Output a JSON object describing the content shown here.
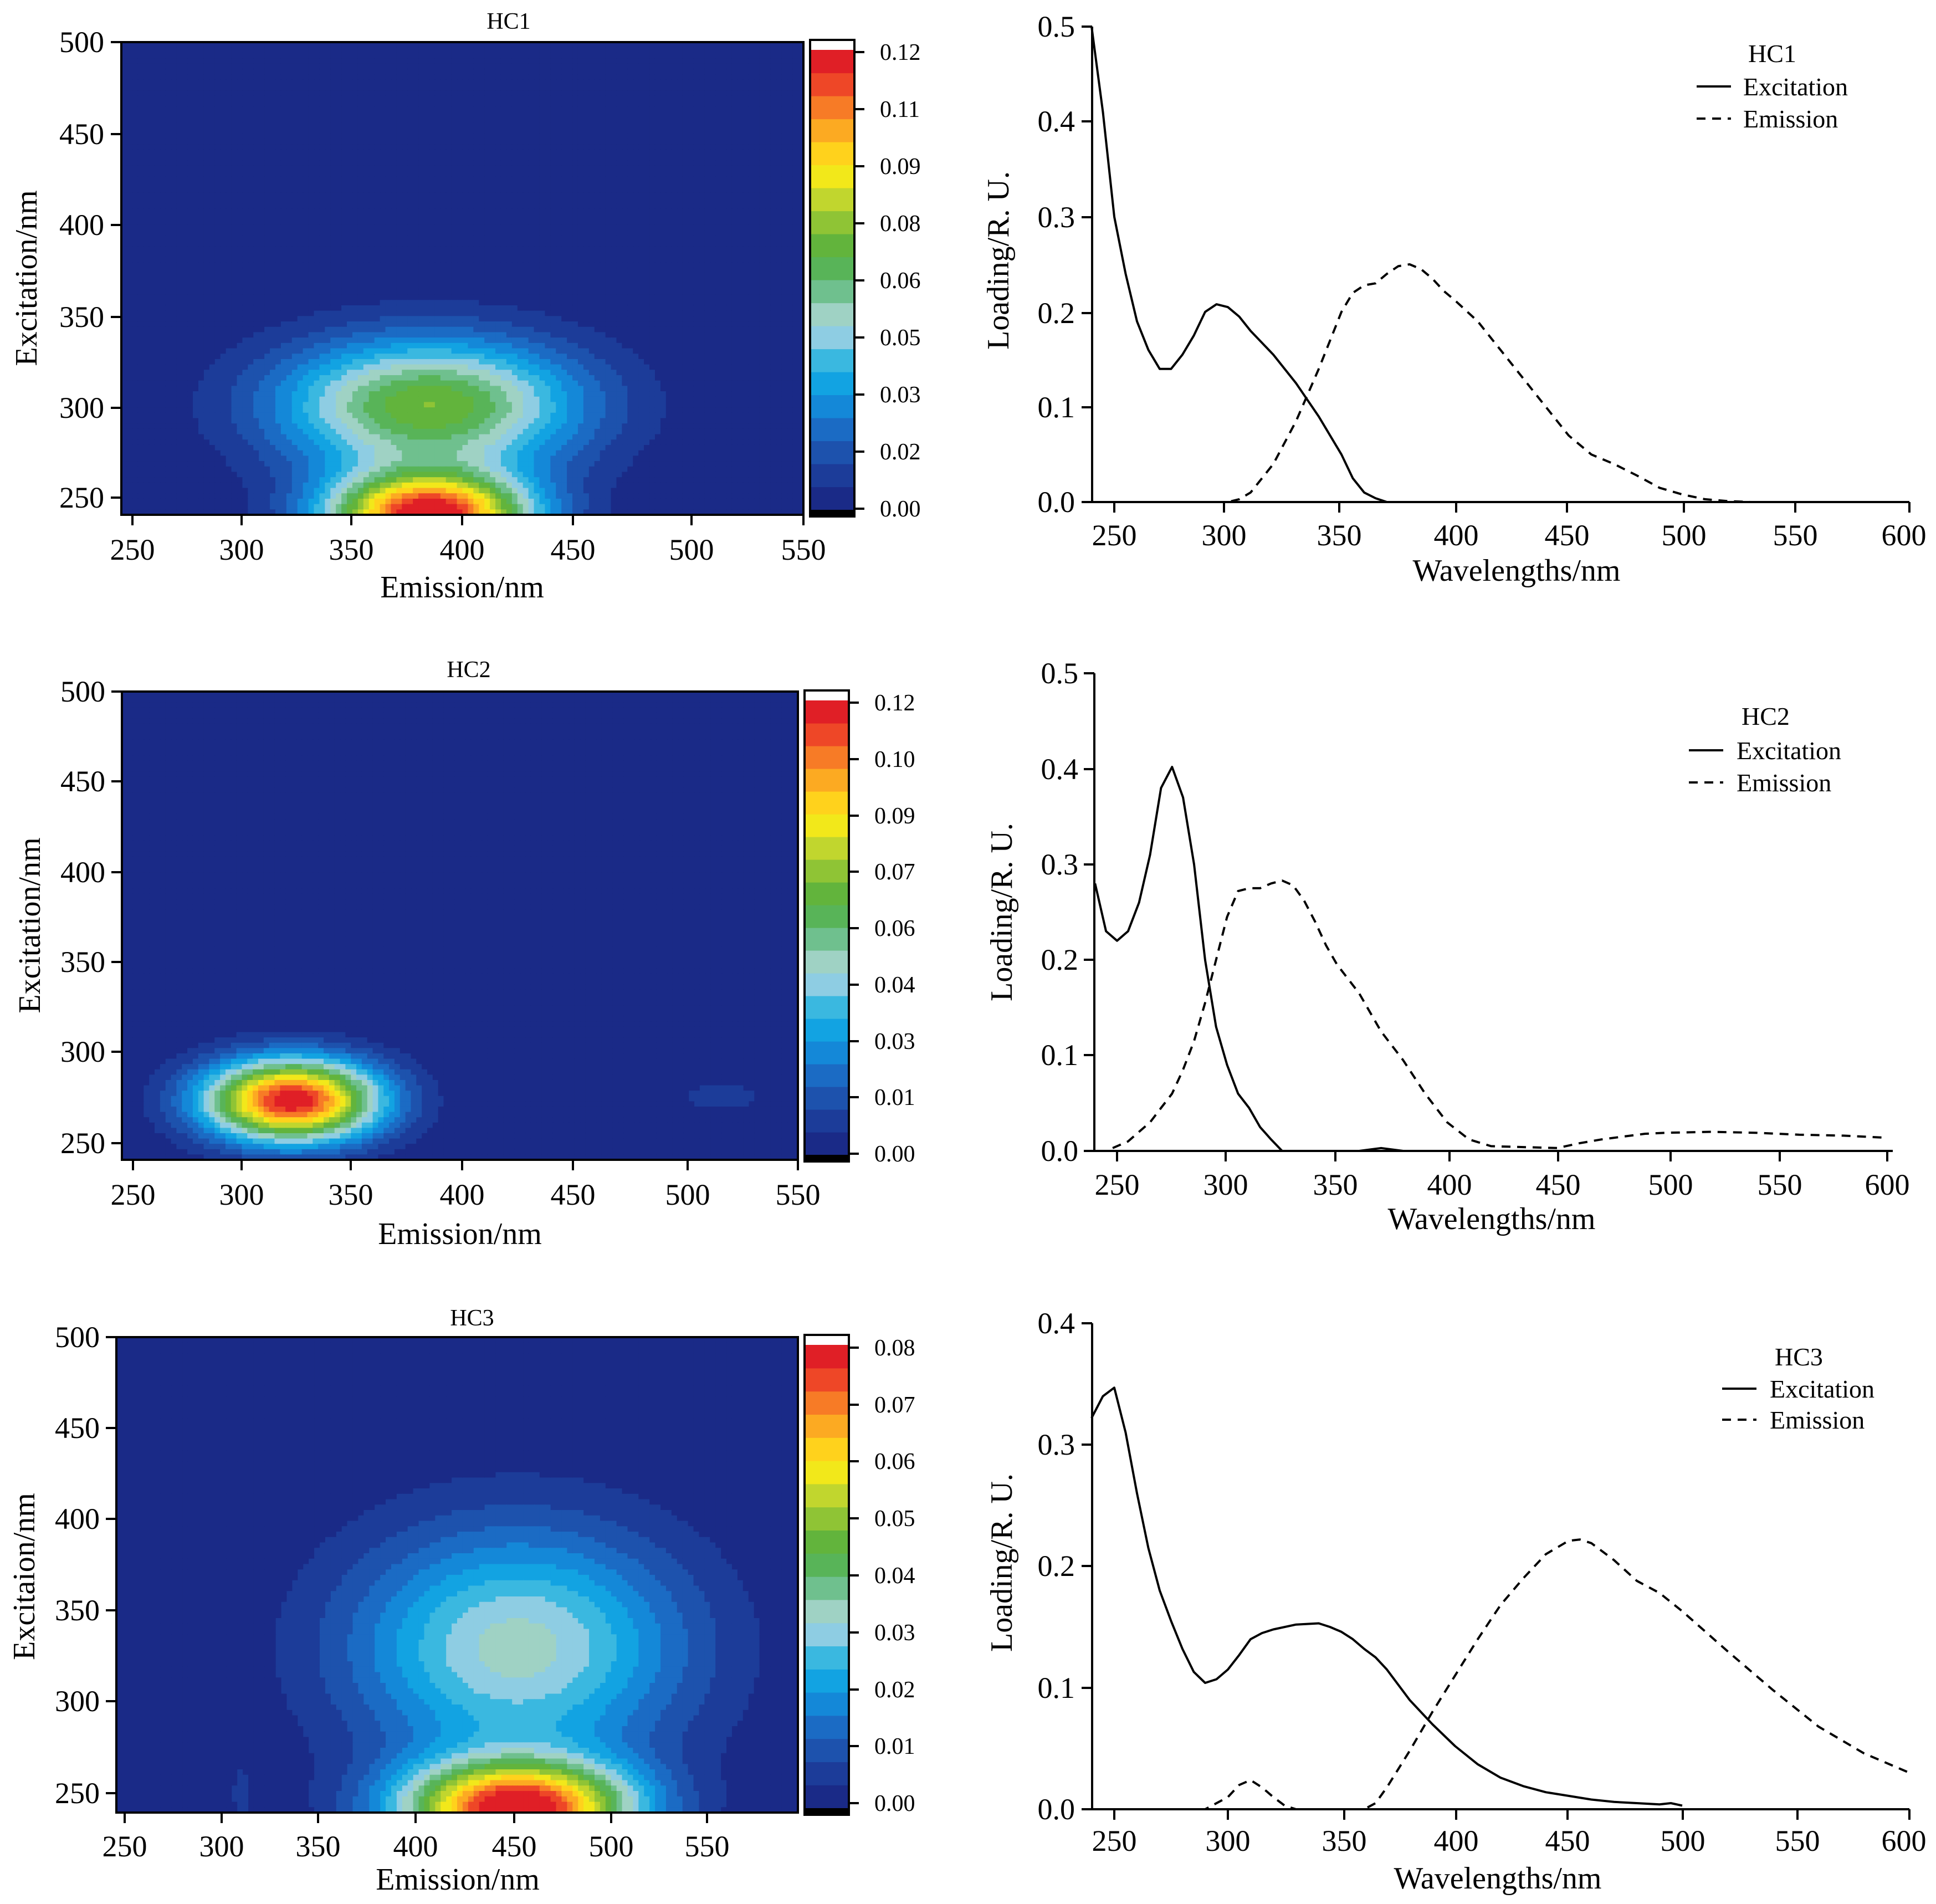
{
  "colormap": [
    "#1a2a87",
    "#1c3c99",
    "#1d52ad",
    "#1b6bc4",
    "#1488d8",
    "#12a3e2",
    "#3ab8e0",
    "#8ecde3",
    "#9fd2c4",
    "#6fc08e",
    "#58b458",
    "#62b43c",
    "#8fc435",
    "#c1d62e",
    "#f2e81a",
    "#ffd21c",
    "#fcaa22",
    "#f77b26",
    "#ee4727",
    "#e01f26"
  ],
  "chart_data": [
    {
      "id": "HC1-eem",
      "type": "heatmap",
      "title": "HC1",
      "xlabel": "Emission/nm",
      "ylabel": "Excitation/nm",
      "xlim": [
        240,
        550
      ],
      "ylim": [
        240,
        500
      ],
      "xticks": [
        "250",
        "300",
        "350",
        "400",
        "450",
        "500",
        "550"
      ],
      "yticks": [
        "250",
        "300",
        "350",
        "400",
        "450",
        "500"
      ],
      "colorbar": {
        "min": 0.0,
        "max": 0.125,
        "ticks": [
          "0.00",
          "0.02",
          "0.03",
          "0.05",
          "0.06",
          "0.08",
          "0.09",
          "0.11",
          "0.12"
        ]
      },
      "peaks": [
        {
          "em": 380,
          "ex": 240,
          "amp": 0.125,
          "sx": 32,
          "sy": 16
        },
        {
          "em": 380,
          "ex": 300,
          "amp": 0.075,
          "sx": 48,
          "sy": 26
        }
      ]
    },
    {
      "id": "HC1-loadings",
      "type": "line",
      "title": "HC1",
      "xlabel": "Wavelengths/nm",
      "ylabel": "Loading/R. U.",
      "xlim": [
        240,
        600
      ],
      "ylim": [
        0,
        0.5
      ],
      "xticks": [
        "250",
        "300",
        "350",
        "400",
        "450",
        "500",
        "550",
        "600"
      ],
      "yticks": [
        "0.0",
        "0.1",
        "0.2",
        "0.3",
        "0.4",
        "0.5"
      ],
      "series": [
        {
          "name": "Excitation",
          "style": "solid",
          "x": [
            240,
            245,
            250,
            255,
            260,
            265,
            270,
            275,
            280,
            285,
            290,
            295,
            300,
            305,
            310,
            320,
            330,
            340,
            350,
            355,
            360,
            365,
            370
          ],
          "y": [
            0.5,
            0.41,
            0.3,
            0.24,
            0.19,
            0.16,
            0.14,
            0.14,
            0.155,
            0.175,
            0.2,
            0.208,
            0.205,
            0.195,
            0.18,
            0.155,
            0.125,
            0.09,
            0.05,
            0.025,
            0.01,
            0.004,
            0.0
          ]
        },
        {
          "name": "Emission",
          "style": "dashed",
          "x": [
            240,
            300,
            305,
            310,
            320,
            330,
            340,
            350,
            355,
            360,
            365,
            370,
            375,
            380,
            385,
            390,
            395,
            400,
            410,
            420,
            430,
            440,
            450,
            460,
            470,
            480,
            490,
            500,
            510,
            520,
            530,
            540,
            600
          ],
          "y": [
            0.0,
            0.0,
            0.003,
            0.01,
            0.04,
            0.085,
            0.14,
            0.2,
            0.22,
            0.228,
            0.23,
            0.24,
            0.248,
            0.25,
            0.245,
            0.235,
            0.222,
            0.212,
            0.19,
            0.16,
            0.13,
            0.1,
            0.07,
            0.05,
            0.04,
            0.028,
            0.015,
            0.008,
            0.003,
            0.001,
            0.0,
            0.0,
            0.0
          ]
        }
      ]
    },
    {
      "id": "HC2-eem",
      "type": "heatmap",
      "title": "HC2",
      "xlabel": "Emission/nm",
      "ylabel": "Excitation/nm",
      "xlim": [
        240,
        550
      ],
      "ylim": [
        240,
        500
      ],
      "xticks": [
        "250",
        "300",
        "350",
        "400",
        "450",
        "500",
        "550"
      ],
      "yticks": [
        "250",
        "300",
        "350",
        "400",
        "450",
        "500"
      ],
      "colorbar": {
        "min": 0.0,
        "max": 0.125,
        "ticks": [
          "0.00",
          "0.01",
          "0.03",
          "0.04",
          "0.06",
          "0.07",
          "0.09",
          "0.10",
          "0.12"
        ]
      },
      "peaks": [
        {
          "em": 318,
          "ex": 273,
          "amp": 0.125,
          "sx": 28,
          "sy": 16
        },
        {
          "em": 515,
          "ex": 275,
          "amp": 0.008,
          "sx": 22,
          "sy": 9
        }
      ]
    },
    {
      "id": "HC2-loadings",
      "type": "line",
      "title": "HC2",
      "xlabel": "Wavelengths/nm",
      "ylabel": "Loading/R. U.",
      "xlim": [
        240,
        600
      ],
      "ylim": [
        0,
        0.5
      ],
      "xticks": [
        "250",
        "300",
        "350",
        "400",
        "450",
        "500",
        "550",
        "600"
      ],
      "yticks": [
        "0.0",
        "0.1",
        "0.2",
        "0.3",
        "0.4",
        "0.5"
      ],
      "series": [
        {
          "name": "Excitation",
          "style": "solid",
          "x": [
            240,
            245,
            250,
            255,
            260,
            265,
            270,
            275,
            280,
            285,
            290,
            295,
            300,
            305,
            310,
            315,
            320,
            325,
            360,
            370,
            380,
            450,
            500
          ],
          "y": [
            0.28,
            0.23,
            0.22,
            0.23,
            0.26,
            0.31,
            0.38,
            0.402,
            0.37,
            0.3,
            0.2,
            0.13,
            0.09,
            0.06,
            0.045,
            0.025,
            0.012,
            0.0,
            0.0,
            0.003,
            0.0,
            0.0,
            0.0
          ]
        },
        {
          "name": "Emission",
          "style": "dashed",
          "x": [
            248,
            255,
            260,
            265,
            270,
            275,
            280,
            285,
            290,
            295,
            300,
            305,
            310,
            315,
            320,
            325,
            330,
            335,
            340,
            345,
            350,
            360,
            370,
            380,
            390,
            400,
            410,
            420,
            450,
            460,
            470,
            480,
            490,
            500,
            520,
            540,
            560,
            580,
            598
          ],
          "y": [
            0.003,
            0.01,
            0.02,
            0.03,
            0.045,
            0.06,
            0.085,
            0.115,
            0.155,
            0.2,
            0.245,
            0.272,
            0.275,
            0.275,
            0.28,
            0.283,
            0.278,
            0.262,
            0.24,
            0.215,
            0.195,
            0.165,
            0.125,
            0.095,
            0.06,
            0.03,
            0.012,
            0.005,
            0.003,
            0.008,
            0.012,
            0.015,
            0.018,
            0.019,
            0.02,
            0.019,
            0.017,
            0.016,
            0.014
          ]
        }
      ]
    },
    {
      "id": "HC3-eem",
      "type": "heatmap",
      "title": "HC3",
      "xlabel": "Emission/nm",
      "ylabel": "Excitaion/nm",
      "xlim": [
        240,
        600
      ],
      "ylim": [
        240,
        500
      ],
      "xticks": [
        "250",
        "300",
        "350",
        "400",
        "450",
        "500",
        "550"
      ],
      "yticks": [
        "250",
        "300",
        "350",
        "400",
        "450",
        "500"
      ],
      "colorbar": {
        "min": 0.0,
        "max": 0.085,
        "ticks": [
          "0.00",
          "0.01",
          "0.02",
          "0.03",
          "0.04",
          "0.05",
          "0.06",
          "0.07",
          "0.08"
        ]
      },
      "peaks": [
        {
          "em": 452,
          "ex": 242,
          "amp": 0.085,
          "sx": 42,
          "sy": 18
        },
        {
          "em": 452,
          "ex": 330,
          "amp": 0.036,
          "sx": 62,
          "sy": 46
        },
        {
          "em": 306,
          "ex": 250,
          "amp": 0.006,
          "sx": 4,
          "sy": 12
        }
      ]
    },
    {
      "id": "HC3-loadings",
      "type": "line",
      "title": "HC3",
      "xlabel": "Wavelengths/nm",
      "ylabel": "Loading/R. U.",
      "xlim": [
        240,
        600
      ],
      "ylim": [
        0,
        0.4
      ],
      "xticks": [
        "250",
        "300",
        "350",
        "400",
        "450",
        "500",
        "550",
        "600"
      ],
      "yticks": [
        "0.0",
        "0.1",
        "0.2",
        "0.3",
        "0.4"
      ],
      "series": [
        {
          "name": "Excitation",
          "style": "solid",
          "x": [
            240,
            245,
            250,
            255,
            260,
            265,
            270,
            275,
            280,
            285,
            290,
            295,
            300,
            305,
            310,
            315,
            320,
            330,
            340,
            345,
            350,
            355,
            360,
            365,
            370,
            380,
            390,
            400,
            410,
            420,
            430,
            440,
            450,
            460,
            470,
            480,
            490,
            495,
            500
          ],
          "y": [
            0.322,
            0.34,
            0.347,
            0.31,
            0.26,
            0.215,
            0.18,
            0.155,
            0.132,
            0.113,
            0.104,
            0.107,
            0.115,
            0.127,
            0.14,
            0.145,
            0.148,
            0.152,
            0.153,
            0.15,
            0.146,
            0.14,
            0.132,
            0.125,
            0.115,
            0.09,
            0.07,
            0.052,
            0.037,
            0.026,
            0.019,
            0.014,
            0.011,
            0.008,
            0.006,
            0.005,
            0.004,
            0.005,
            0.003
          ]
        },
        {
          "name": "Emission",
          "style": "dashed",
          "x": [
            240,
            290,
            300,
            305,
            310,
            315,
            320,
            325,
            330,
            335,
            340,
            345,
            350,
            355,
            360,
            365,
            370,
            380,
            390,
            400,
            410,
            420,
            430,
            440,
            450,
            455,
            460,
            470,
            480,
            490,
            500,
            520,
            540,
            560,
            580,
            600
          ],
          "y": [
            0.0,
            0.0,
            0.01,
            0.02,
            0.024,
            0.018,
            0.01,
            0.003,
            0.0,
            0.0,
            0.0,
            0.0,
            0.0,
            0.0,
            0.0,
            0.005,
            0.018,
            0.048,
            0.08,
            0.11,
            0.14,
            0.168,
            0.19,
            0.21,
            0.221,
            0.222,
            0.219,
            0.205,
            0.188,
            0.178,
            0.163,
            0.13,
            0.098,
            0.068,
            0.046,
            0.03
          ]
        }
      ]
    }
  ]
}
